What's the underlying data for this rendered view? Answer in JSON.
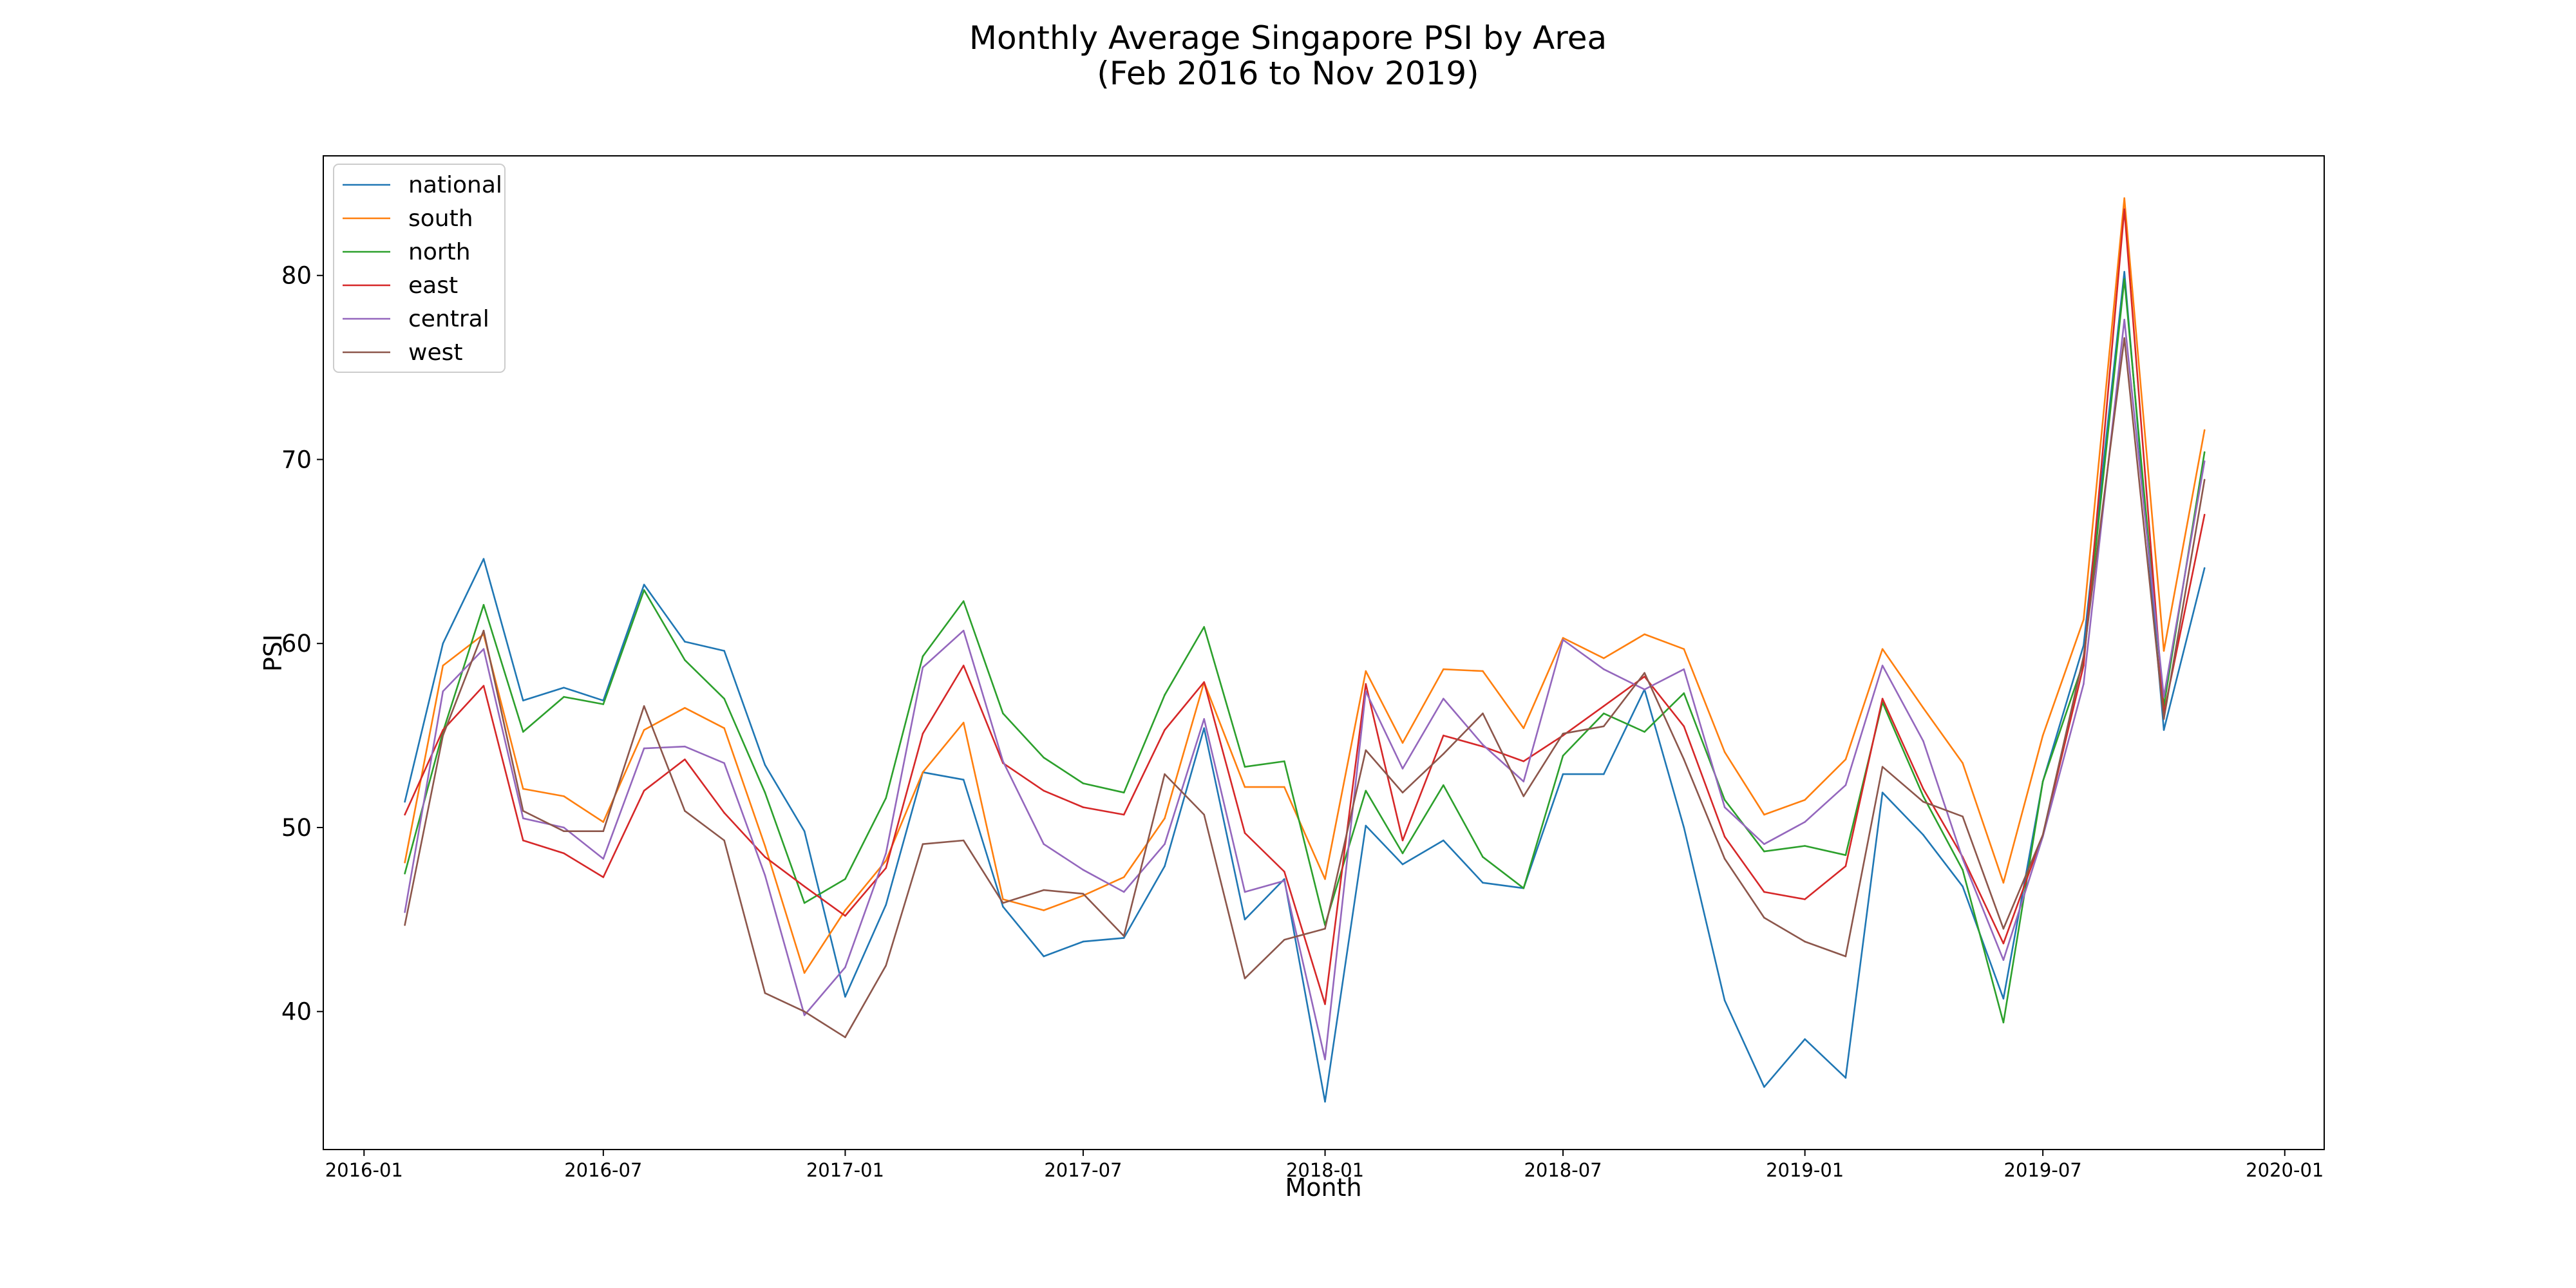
{
  "chart_data": {
    "type": "line",
    "title": "Monthly Average Singapore PSI by Area",
    "subtitle": "(Feb 2016 to Nov 2019)",
    "xlabel": "Month",
    "ylabel": "PSI",
    "x": [
      "2016-02",
      "2016-03",
      "2016-04",
      "2016-05",
      "2016-06",
      "2016-07",
      "2016-08",
      "2016-09",
      "2016-10",
      "2016-11",
      "2016-12",
      "2017-01",
      "2017-02",
      "2017-03",
      "2017-04",
      "2017-05",
      "2017-06",
      "2017-07",
      "2017-08",
      "2017-09",
      "2017-10",
      "2017-11",
      "2017-12",
      "2018-01",
      "2018-02",
      "2018-03",
      "2018-04",
      "2018-05",
      "2018-06",
      "2018-07",
      "2018-08",
      "2018-09",
      "2018-10",
      "2018-11",
      "2018-12",
      "2019-01",
      "2019-02",
      "2019-03",
      "2019-04",
      "2019-05",
      "2019-06",
      "2019-07",
      "2019-08",
      "2019-09",
      "2019-10",
      "2019-11"
    ],
    "xlim": [
      "2015-12-01",
      "2020-01-31"
    ],
    "xticks": [
      "2016-01",
      "2016-07",
      "2017-01",
      "2017-07",
      "2018-01",
      "2018-07",
      "2019-01",
      "2019-07",
      "2020-01"
    ],
    "ylim": [
      32.5,
      86.5
    ],
    "yticks": [
      40,
      50,
      60,
      70,
      80
    ],
    "grid": false,
    "legend_position": "top-left",
    "series": [
      {
        "name": "national",
        "color": "#1f77b4",
        "values": [
          51.4,
          60.0,
          64.6,
          56.9,
          57.6,
          56.9,
          63.2,
          60.1,
          59.6,
          53.4,
          49.8,
          40.8,
          45.8,
          53.0,
          52.6,
          45.7,
          43.0,
          43.8,
          44.0,
          47.9,
          55.4,
          45.0,
          47.2,
          35.1,
          50.1,
          48.0,
          49.3,
          47.0,
          46.7,
          52.9,
          52.9,
          57.5,
          50.0,
          40.6,
          35.9,
          38.5,
          36.4,
          51.9,
          49.6,
          46.8,
          40.7,
          52.5,
          59.9,
          80.2,
          55.3,
          64.1
        ]
      },
      {
        "name": "south",
        "color": "#ff7f0e",
        "values": [
          48.1,
          58.8,
          60.5,
          52.1,
          51.7,
          50.3,
          55.3,
          56.5,
          55.4,
          49.0,
          42.1,
          45.5,
          48.2,
          53.0,
          55.7,
          46.1,
          45.5,
          46.3,
          47.3,
          50.5,
          57.9,
          52.2,
          52.2,
          47.2,
          58.5,
          54.6,
          58.6,
          58.5,
          55.4,
          60.3,
          59.2,
          60.5,
          59.7,
          54.1,
          50.7,
          51.5,
          53.7,
          59.7,
          56.5,
          53.5,
          47.0,
          55.0,
          61.3,
          84.2,
          59.6,
          71.6
        ]
      },
      {
        "name": "north",
        "color": "#2ca02c",
        "values": [
          47.5,
          55.2,
          62.1,
          55.2,
          57.1,
          56.7,
          62.9,
          59.1,
          57.0,
          51.9,
          45.9,
          47.2,
          51.6,
          59.3,
          62.3,
          56.2,
          53.8,
          52.4,
          51.9,
          57.2,
          60.9,
          53.3,
          53.6,
          44.7,
          52.0,
          48.6,
          52.3,
          48.4,
          46.7,
          53.9,
          56.2,
          55.2,
          57.3,
          51.5,
          48.7,
          49.0,
          48.5,
          56.8,
          51.7,
          47.7,
          39.4,
          52.5,
          59.0,
          79.8,
          56.6,
          70.4
        ]
      },
      {
        "name": "east",
        "color": "#d62728",
        "values": [
          50.7,
          55.3,
          57.7,
          49.3,
          48.6,
          47.3,
          52.0,
          53.7,
          50.8,
          48.4,
          46.8,
          45.2,
          47.8,
          55.1,
          58.8,
          53.5,
          52.0,
          51.1,
          50.7,
          55.3,
          57.9,
          49.7,
          47.6,
          40.4,
          57.8,
          49.3,
          55.0,
          54.4,
          53.6,
          55.0,
          56.6,
          58.2,
          55.5,
          49.5,
          46.5,
          46.1,
          47.9,
          57.0,
          52.1,
          48.4,
          43.7,
          49.6,
          58.8,
          83.6,
          56.2,
          67.0
        ]
      },
      {
        "name": "central",
        "color": "#9467bd",
        "values": [
          45.4,
          57.4,
          59.7,
          50.5,
          50.0,
          48.3,
          54.3,
          54.4,
          53.5,
          47.4,
          39.8,
          42.4,
          48.6,
          58.7,
          60.7,
          53.6,
          49.1,
          47.7,
          46.5,
          49.1,
          55.9,
          46.5,
          47.1,
          37.4,
          57.4,
          53.2,
          57.0,
          54.5,
          52.5,
          60.2,
          58.6,
          57.5,
          58.6,
          51.1,
          49.1,
          50.3,
          52.3,
          58.8,
          54.7,
          48.3,
          42.8,
          49.5,
          57.8,
          77.6,
          57.1,
          69.9
        ]
      },
      {
        "name": "west",
        "color": "#8c564b",
        "values": [
          44.7,
          55.0,
          60.7,
          50.9,
          49.8,
          49.8,
          56.6,
          50.9,
          49.3,
          41.0,
          40.0,
          38.6,
          42.5,
          49.1,
          49.3,
          45.9,
          46.6,
          46.4,
          44.1,
          52.9,
          50.7,
          41.8,
          43.9,
          44.5,
          54.2,
          51.9,
          54.0,
          56.2,
          51.7,
          55.1,
          55.5,
          58.4,
          53.7,
          48.3,
          45.1,
          43.8,
          43.0,
          53.3,
          51.4,
          50.6,
          44.5,
          49.6,
          59.3,
          76.6,
          55.9,
          68.9
        ]
      }
    ]
  }
}
